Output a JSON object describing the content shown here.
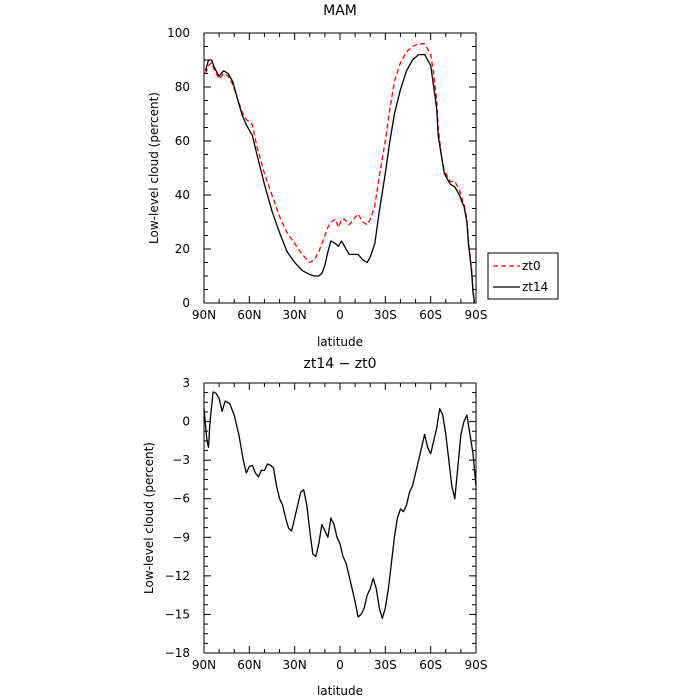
{
  "chart_data": [
    {
      "type": "line",
      "title": "MAM",
      "xlabel": "latitude",
      "ylabel": "Low-level cloud (percent)",
      "xlim": [
        90,
        -90
      ],
      "ylim": [
        0,
        100
      ],
      "xticks": [
        90,
        60,
        30,
        0,
        -30,
        -60,
        -90
      ],
      "xtick_labels": [
        "90N",
        "60N",
        "30N",
        "0",
        "30S",
        "60S",
        "90S"
      ],
      "yticks": [
        0,
        20,
        40,
        60,
        80,
        100
      ],
      "ytick_labels": [
        "0",
        "20",
        "40",
        "60",
        "80",
        "100"
      ],
      "legend_position": "right",
      "series": [
        {
          "name": "zt0",
          "color": "#ff0000",
          "style": "dashed",
          "x": [
            89,
            87,
            85,
            83,
            80,
            77,
            74,
            71,
            68,
            65,
            62,
            58,
            55,
            50,
            45,
            40,
            35,
            30,
            25,
            20,
            17,
            14,
            12,
            10,
            8,
            6,
            3,
            1,
            -1,
            -3,
            -6,
            -9,
            -12,
            -15,
            -18,
            -20,
            -23,
            -26,
            -30,
            -33,
            -36,
            -40,
            -44,
            -48,
            -52,
            -56,
            -60,
            -62,
            -64,
            -65,
            -67,
            -69,
            -71,
            -73,
            -76,
            -79,
            -81,
            -82,
            -84,
            -85,
            -87,
            -88,
            -89
          ],
          "y": [
            85,
            88,
            89,
            86,
            83,
            85,
            84,
            81,
            76,
            71,
            68,
            66,
            58,
            48,
            40,
            32,
            26,
            22,
            18,
            15,
            16,
            19,
            22,
            25,
            28,
            30,
            31,
            28,
            31,
            31,
            29,
            31,
            33,
            30,
            29,
            31,
            36,
            47,
            60,
            72,
            82,
            89,
            93,
            95,
            96,
            96,
            92,
            85,
            75,
            65,
            55,
            49,
            47,
            45,
            45,
            42,
            38,
            37,
            31,
            23,
            13,
            5,
            0
          ]
        },
        {
          "name": "zt14",
          "color": "#000000",
          "style": "solid",
          "x": [
            89,
            87,
            85,
            83,
            80,
            77,
            74,
            71,
            68,
            65,
            62,
            58,
            55,
            50,
            45,
            40,
            35,
            30,
            25,
            20,
            17,
            14,
            12,
            10,
            8,
            6,
            3,
            1,
            -1,
            -3,
            -6,
            -9,
            -12,
            -15,
            -18,
            -20,
            -23,
            -26,
            -30,
            -33,
            -36,
            -40,
            -44,
            -48,
            -52,
            -56,
            -60,
            -62,
            -64,
            -65,
            -67,
            -69,
            -71,
            -73,
            -76,
            -79,
            -81,
            -82,
            -84,
            -85,
            -87,
            -88,
            -89
          ],
          "y": [
            86,
            90,
            90,
            87,
            84,
            86,
            85,
            82,
            76,
            70,
            66,
            62,
            55,
            44,
            34,
            26,
            19,
            15,
            12,
            10.5,
            10,
            10,
            11,
            14,
            19,
            23,
            22,
            21,
            23,
            21,
            18,
            18,
            18,
            16,
            15,
            17,
            22,
            34,
            48,
            60,
            70,
            79,
            86,
            90,
            92,
            92,
            88,
            80,
            72,
            62,
            55,
            48,
            46,
            44,
            43,
            40,
            37,
            36,
            30,
            22,
            12,
            4,
            0
          ]
        }
      ]
    },
    {
      "type": "line",
      "title": "zt14 − zt0",
      "xlabel": "latitude",
      "ylabel": "Low-level cloud (percent)",
      "xlim": [
        90,
        -90
      ],
      "ylim": [
        -18,
        3
      ],
      "xticks": [
        90,
        60,
        30,
        0,
        -30,
        -60,
        -90
      ],
      "xtick_labels": [
        "90N",
        "60N",
        "30N",
        "0",
        "30S",
        "60S",
        "90S"
      ],
      "yticks": [
        3,
        0,
        -3,
        -6,
        -9,
        -12,
        -15,
        -18
      ],
      "ytick_labels": [
        "3",
        "0",
        "−3",
        "−6",
        "−9",
        "−12",
        "−15",
        "−18"
      ],
      "series": [
        {
          "color": "#000000",
          "style": "solid",
          "x": [
            90,
            88,
            87,
            86,
            84,
            82,
            80,
            78,
            76,
            73,
            70,
            67,
            64,
            62,
            60,
            58,
            56,
            54,
            52,
            50,
            48,
            46,
            44,
            42,
            40,
            38,
            36,
            34,
            32,
            30,
            28,
            26,
            24,
            22,
            20,
            18,
            16,
            14,
            12,
            10,
            8,
            6,
            4,
            2,
            0,
            -2,
            -4,
            -6,
            -8,
            -10,
            -12,
            -14,
            -16,
            -18,
            -20,
            -22,
            -24,
            -26,
            -28,
            -30,
            -32,
            -34,
            -36,
            -38,
            -40,
            -42,
            -44,
            -46,
            -48,
            -50,
            -52,
            -54,
            -56,
            -58,
            -60,
            -62,
            -64,
            -66,
            -68,
            -70,
            -72,
            -74,
            -76,
            -78,
            -80,
            -82,
            -84,
            -86,
            -88,
            -90
          ],
          "y": [
            1,
            -1.5,
            -2,
            0,
            2.3,
            2.2,
            1.8,
            0.8,
            1.6,
            1.4,
            0.5,
            -1,
            -3,
            -4,
            -3.5,
            -3.4,
            -4,
            -4.3,
            -3.8,
            -3.8,
            -3.3,
            -3.4,
            -3.6,
            -5,
            -6,
            -6.5,
            -7.5,
            -8.3,
            -8.5,
            -7.5,
            -6.5,
            -5.5,
            -5.3,
            -6.5,
            -8.5,
            -10.3,
            -10.5,
            -9.5,
            -8,
            -8.5,
            -9,
            -7.5,
            -8,
            -9,
            -9.5,
            -10.5,
            -11,
            -12,
            -13,
            -14,
            -15.2,
            -15,
            -14.5,
            -13.5,
            -13,
            -12.2,
            -13,
            -14.5,
            -15.3,
            -14.5,
            -13,
            -11,
            -9,
            -7.5,
            -6.8,
            -7,
            -6.5,
            -5.5,
            -5,
            -4,
            -3,
            -2,
            -1,
            -2,
            -2.5,
            -1.5,
            -0.5,
            1,
            0.5,
            -1,
            -3,
            -5,
            -6,
            -3.5,
            -1,
            0,
            0.5,
            -1,
            -2.5,
            -5
          ]
        }
      ]
    }
  ]
}
